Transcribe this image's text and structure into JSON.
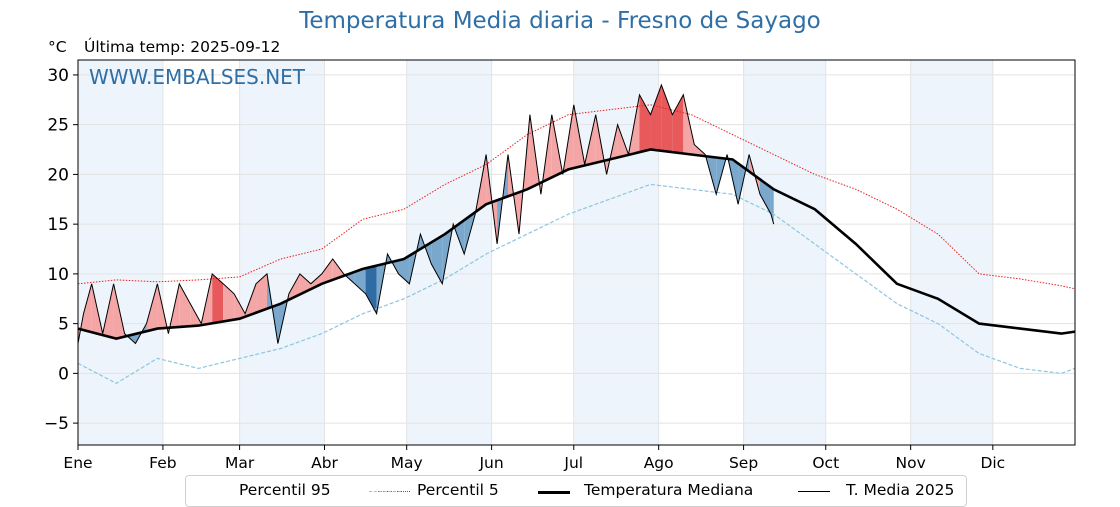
{
  "title": "Temperatura Media diaria - Fresno de Sayago",
  "units": "°C",
  "last_temp": "Última temp: 2025-09-12",
  "watermark": "WWW.EMBALSES.NET",
  "colors": {
    "p95": "#e8201e",
    "p5": "#8ec6e0",
    "median": "#000000",
    "year": "#000000",
    "above_fill": "#f4a6a6",
    "above_fill_strong": "#e8595b",
    "below_fill": "#7aa7cc",
    "below_fill_strong": "#2f6ca3",
    "month_band": "#eef4fb"
  },
  "chart_data": {
    "type": "line",
    "ylim": [
      -7.2,
      31.5
    ],
    "yticks": [
      -5,
      0,
      5,
      10,
      15,
      20,
      25,
      30
    ],
    "ytick_labels": [
      "−5",
      "0",
      "5",
      "10",
      "15",
      "20",
      "25",
      "30"
    ],
    "xlim": [
      1,
      365
    ],
    "month_labels": [
      "Ene",
      "Feb",
      "Mar",
      "Abr",
      "May",
      "Jun",
      "Jul",
      "Ago",
      "Sep",
      "Oct",
      "Nov",
      "Dic"
    ],
    "month_starts": [
      1,
      32,
      60,
      91,
      121,
      152,
      182,
      213,
      244,
      274,
      305,
      335
    ],
    "grid": true,
    "legend_position": "bottom",
    "series": [
      {
        "name": "Percentil 95",
        "style": "dotted-red",
        "x": [
          1,
          15,
          30,
          45,
          60,
          75,
          90,
          105,
          120,
          135,
          150,
          165,
          180,
          195,
          210,
          225,
          240,
          255,
          270,
          285,
          300,
          315,
          330,
          345,
          360,
          365
        ],
        "y": [
          9,
          9.4,
          9.2,
          9.4,
          9.7,
          11.5,
          12.5,
          15.5,
          16.5,
          19,
          21,
          24,
          26,
          26.5,
          27,
          26,
          24,
          22,
          20,
          18.5,
          16.5,
          14,
          10,
          9.5,
          8.8,
          8.5
        ]
      },
      {
        "name": "Percentil 5",
        "style": "dashed-blue",
        "x": [
          1,
          15,
          30,
          45,
          60,
          75,
          90,
          105,
          120,
          135,
          150,
          165,
          180,
          195,
          210,
          225,
          240,
          255,
          270,
          285,
          300,
          315,
          330,
          345,
          360,
          365
        ],
        "y": [
          1,
          -1,
          1.5,
          0.5,
          1.5,
          2.5,
          4,
          6,
          7.5,
          9.5,
          12,
          14,
          16,
          17.5,
          19,
          18.5,
          18,
          16,
          13,
          10,
          7,
          5,
          2,
          0.5,
          0,
          0.5
        ]
      },
      {
        "name": "Temperatura Mediana",
        "style": "solid-thick",
        "x": [
          1,
          15,
          30,
          45,
          60,
          75,
          90,
          105,
          120,
          135,
          150,
          165,
          180,
          195,
          210,
          225,
          240,
          255,
          270,
          285,
          300,
          315,
          330,
          345,
          360,
          365
        ],
        "y": [
          4.5,
          3.5,
          4.5,
          4.8,
          5.5,
          7,
          9,
          10.5,
          11.5,
          14,
          17,
          18.5,
          20.5,
          21.5,
          22.5,
          22,
          21.5,
          18.5,
          16.5,
          13,
          9,
          7.5,
          5,
          4.5,
          4,
          4.2
        ]
      },
      {
        "name": "T. Media 2025",
        "style": "solid-thin",
        "x": [
          1,
          3,
          6,
          10,
          14,
          18,
          22,
          26,
          30,
          34,
          38,
          42,
          46,
          50,
          54,
          58,
          62,
          66,
          70,
          74,
          78,
          82,
          86,
          90,
          94,
          98,
          102,
          106,
          110,
          114,
          118,
          122,
          126,
          130,
          134,
          138,
          142,
          146,
          150,
          154,
          158,
          162,
          166,
          170,
          174,
          178,
          182,
          186,
          190,
          194,
          198,
          202,
          206,
          210,
          214,
          218,
          222,
          226,
          230,
          234,
          238,
          242,
          246,
          250,
          254,
          255
        ],
        "y": [
          3,
          6,
          9,
          4,
          9,
          4,
          3,
          5,
          9,
          4,
          9,
          7,
          5,
          10,
          9,
          8,
          6,
          9,
          10,
          3,
          8,
          10,
          9,
          10,
          11.5,
          10,
          9,
          8,
          6,
          12,
          10,
          9,
          14,
          11,
          9,
          15,
          12,
          16,
          22,
          13,
          22,
          14,
          26,
          18,
          26,
          20,
          27,
          21,
          26,
          20,
          25,
          22,
          28,
          26,
          29,
          26,
          28,
          23,
          22,
          18,
          22,
          17,
          22,
          18,
          16,
          15
        ]
      }
    ]
  },
  "legend": {
    "p95": "Percentil 95",
    "p5": "Percentil 5",
    "median": "Temperatura Mediana",
    "year": "T. Media 2025"
  }
}
